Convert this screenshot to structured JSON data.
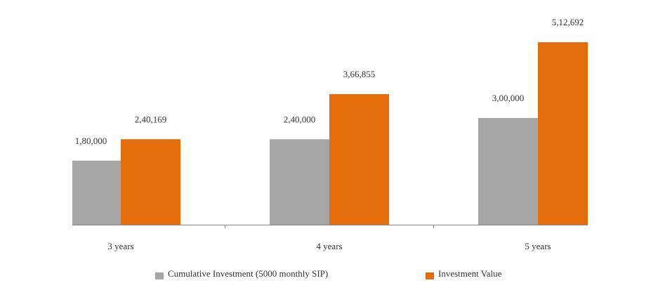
{
  "chart_data": {
    "type": "bar",
    "categories": [
      "3 years",
      "4 years",
      "5 years"
    ],
    "series": [
      {
        "name": "Cumulative Investment (5000 monthly SIP)",
        "values": [
          180000,
          240000,
          300000
        ],
        "labels": [
          "1,80,000",
          "2,40,000",
          "3,00,000"
        ],
        "color": "#a6a6a6"
      },
      {
        "name": "Investment Value",
        "values": [
          240169,
          366855,
          512692
        ],
        "labels": [
          "2,40,169",
          "3,66,855",
          "5,12,692"
        ],
        "color": "#e46c0a"
      }
    ],
    "ylim": [
      0,
      513000
    ],
    "grid": false,
    "legend": "bottom"
  }
}
